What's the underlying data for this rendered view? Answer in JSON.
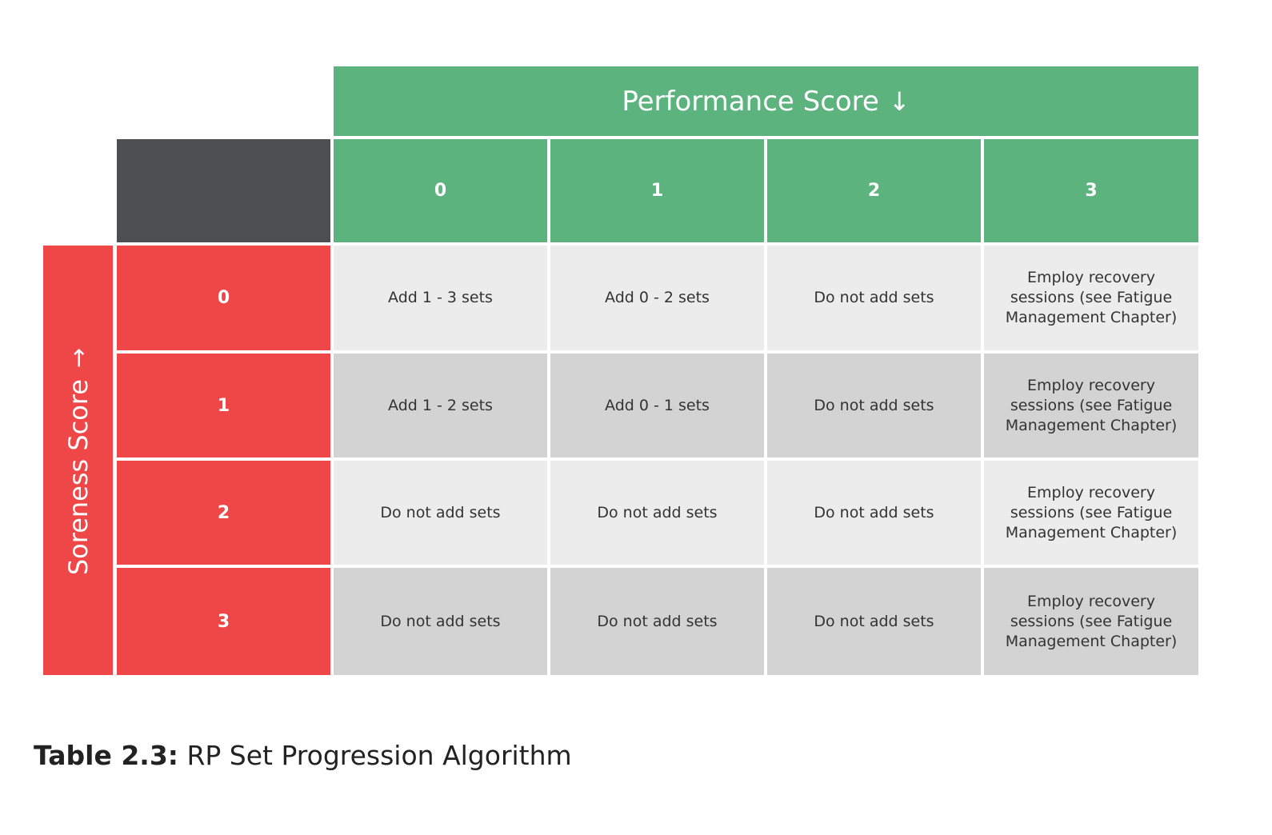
{
  "table": {
    "column_axis_label": "Performance Score",
    "row_axis_label": "Soreness Score",
    "axis_arrow": "↓",
    "row_arrow": "→",
    "columns": [
      "0",
      "1",
      "2",
      "3"
    ],
    "rows": [
      {
        "label": "0",
        "cells": [
          "Add 1 - 3 sets",
          "Add 0 - 2 sets",
          "Do not add sets",
          "Employ recovery sessions (see Fatigue Management Chapter)"
        ]
      },
      {
        "label": "1",
        "cells": [
          "Add 1 - 2 sets",
          "Add 0 - 1 sets",
          "Do not add sets",
          "Employ recovery sessions (see Fatigue Management Chapter)"
        ]
      },
      {
        "label": "2",
        "cells": [
          "Do not add sets",
          "Do not add sets",
          "Do not add sets",
          "Employ recovery sessions (see Fatigue Management Chapter)"
        ]
      },
      {
        "label": "3",
        "cells": [
          "Do not add sets",
          "Do not add sets",
          "Do not add sets",
          "Employ recovery sessions (see Fatigue Management Chapter)"
        ]
      }
    ]
  },
  "caption": {
    "label": "Table 2.3:",
    "text": " RP Set Progression Algorithm"
  },
  "colors": {
    "header_green": "#5cb37e",
    "row_red": "#ef4647",
    "corner_gray": "#4d4e50",
    "light_row": "#ececec",
    "dark_row": "#d4d3d4"
  }
}
